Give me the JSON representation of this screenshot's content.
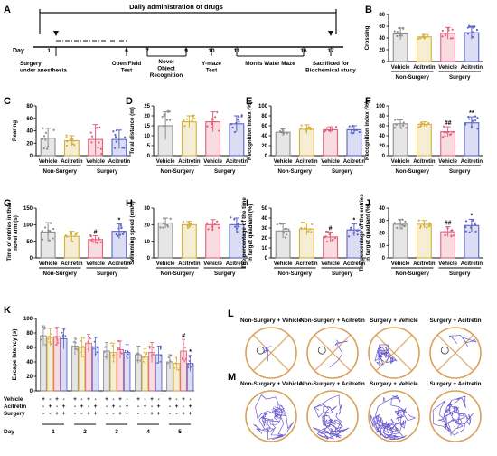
{
  "colors": {
    "vehicle_nonsurgery": "#8c8c8c",
    "acitretin_nonsurgery": "#d6b03a",
    "vehicle_surgery": "#e0607a",
    "acitretin_surgery": "#5a63c8",
    "sig": "#111111",
    "maze_ring": "#d9a05a",
    "track": "#6a5acd"
  },
  "timeline": {
    "panel": "A",
    "title": "Daily administration of drugs",
    "day_label": "Day",
    "days": [
      "1",
      "6",
      "7",
      "9",
      "10",
      "11",
      "16",
      "17"
    ],
    "events": [
      {
        "day": "1",
        "label": "Surgery\nunder anesthesia"
      },
      {
        "day": "6",
        "label": "Open Field\nTest"
      },
      {
        "day": "7-9",
        "label": "Novel\nObject\nRecognition"
      },
      {
        "day": "10",
        "label": "Y-maze\nTest"
      },
      {
        "day": "11-16",
        "label": "Morris Water Maze"
      },
      {
        "day": "17",
        "label": "Sacrificed for\nBiochemical study"
      }
    ]
  },
  "chart_data": [
    {
      "panel": "B",
      "type": "bar",
      "ylabel": "Crossing",
      "ylim": [
        0,
        80
      ],
      "yticks": [
        0,
        20,
        40,
        60,
        80
      ],
      "categories": [
        "Vehicle",
        "Acitretin",
        "Vehicle",
        "Acitretin"
      ],
      "groups": [
        "Non-Surgery",
        "Surgery"
      ],
      "values": [
        47,
        42,
        48,
        49
      ],
      "errors": [
        10,
        4,
        10,
        11
      ],
      "sig": [
        "",
        "",
        "",
        ""
      ]
    },
    {
      "panel": "C",
      "type": "bar",
      "ylabel": "Rearing",
      "ylim": [
        0,
        80
      ],
      "yticks": [
        0,
        20,
        40,
        60,
        80
      ],
      "categories": [
        "Vehicle",
        "Acitretin",
        "Vehicle",
        "Acitretin"
      ],
      "groups": [
        "Non-Surgery",
        "Surgery"
      ],
      "values": [
        28,
        24,
        26,
        26
      ],
      "errors": [
        16,
        8,
        24,
        15
      ],
      "sig": [
        "",
        "",
        "",
        ""
      ]
    },
    {
      "panel": "D",
      "type": "bar",
      "ylabel": "Total distance (m)",
      "ylim": [
        0,
        25
      ],
      "yticks": [
        0,
        5,
        10,
        15,
        20,
        25
      ],
      "categories": [
        "Vehicle",
        "Acitretin",
        "Vehicle",
        "Acitretin"
      ],
      "groups": [
        "Non-Surgery",
        "Surgery"
      ],
      "values": [
        15,
        17,
        17,
        16
      ],
      "errors": [
        7,
        3,
        5,
        4
      ],
      "sig": [
        "",
        "",
        "",
        ""
      ]
    },
    {
      "panel": "E",
      "type": "bar",
      "ylabel": "Recognition index (%)",
      "ylim": [
        0,
        100
      ],
      "yticks": [
        0,
        20,
        40,
        60,
        80,
        100
      ],
      "categories": [
        "Vehicle",
        "Acitretin",
        "Vehicle",
        "Acitretin"
      ],
      "groups": [
        "Non-Surgery",
        "Surgery"
      ],
      "values": [
        47,
        53,
        52,
        52
      ],
      "errors": [
        7,
        9,
        6,
        8
      ],
      "sig": [
        "",
        "",
        "",
        ""
      ]
    },
    {
      "panel": "F",
      "type": "bar",
      "ylabel": "Recognition index (%)",
      "ylim": [
        0,
        100
      ],
      "yticks": [
        0,
        20,
        40,
        60,
        80,
        100
      ],
      "categories": [
        "Vehicle",
        "Acitretin",
        "Vehicle",
        "Acitretin"
      ],
      "groups": [
        "Non-Surgery",
        "Surgery"
      ],
      "values": [
        64,
        63,
        48,
        66
      ],
      "errors": [
        8,
        5,
        10,
        12
      ],
      "sig": [
        "",
        "",
        "##",
        "**"
      ]
    },
    {
      "panel": "G",
      "type": "bar",
      "ylabel": "Time of entries in the\nnovel arm (s)",
      "ylim": [
        0,
        150
      ],
      "yticks": [
        0,
        50,
        100,
        150
      ],
      "categories": [
        "Vehicle",
        "Acitretin",
        "Vehicle",
        "Acitretin"
      ],
      "groups": [
        "Non-Surgery",
        "Surgery"
      ],
      "values": [
        78,
        65,
        55,
        80
      ],
      "errors": [
        28,
        15,
        12,
        22
      ],
      "sig": [
        "",
        "",
        "#",
        "*"
      ]
    },
    {
      "panel": "H",
      "type": "bar",
      "ylabel": "Swimming speed (cm/s)",
      "ylim": [
        0,
        30
      ],
      "yticks": [
        0,
        10,
        20,
        30
      ],
      "categories": [
        "Vehicle",
        "Acitretin",
        "Vehicle",
        "Acitretin"
      ],
      "groups": [
        "Non-Surgery",
        "Surgery"
      ],
      "values": [
        21,
        20,
        20,
        20
      ],
      "errors": [
        3,
        2,
        3,
        4
      ],
      "sig": [
        "",
        "",
        "",
        ""
      ]
    },
    {
      "panel": "I",
      "type": "bar",
      "ylabel": "The percentage of the time\nin target quadrant (%)",
      "ylim": [
        0,
        50
      ],
      "yticks": [
        0,
        10,
        20,
        30,
        40,
        50
      ],
      "categories": [
        "Vehicle",
        "Acitretin",
        "Vehicle",
        "Acitretin"
      ],
      "groups": [
        "Non-Surgery",
        "Surgery"
      ],
      "values": [
        27,
        29,
        21,
        28
      ],
      "errors": [
        7,
        6,
        5,
        6
      ],
      "sig": [
        "",
        "",
        "#",
        "*"
      ]
    },
    {
      "panel": "J",
      "type": "bar",
      "ylabel": "The percentage of the entries\nin target quadrant (%)",
      "ylim": [
        0,
        40
      ],
      "yticks": [
        0,
        10,
        20,
        30,
        40
      ],
      "categories": [
        "Vehicle",
        "Acitretin",
        "Vehicle",
        "Acitretin"
      ],
      "groups": [
        "Non-Surgery",
        "Surgery"
      ],
      "values": [
        27,
        27,
        21,
        26
      ],
      "errors": [
        4,
        3,
        4,
        5
      ],
      "sig": [
        "",
        "",
        "##",
        "*"
      ]
    },
    {
      "panel": "K",
      "type": "bar",
      "ylabel": "Escape latency (s)",
      "ylim": [
        0,
        100
      ],
      "yticks": [
        0,
        20,
        40,
        60,
        80,
        100
      ],
      "xlabel": "Day",
      "days": [
        "1",
        "2",
        "3",
        "4",
        "5"
      ],
      "row_labels": [
        "Vehicle",
        "Acitretin",
        "Surgery"
      ],
      "row_signs": [
        [
          "+",
          "-",
          "+",
          "-"
        ],
        [
          "-",
          "+",
          "-",
          "+"
        ],
        [
          "-",
          "-",
          "+",
          "+"
        ]
      ],
      "series": [
        {
          "values": [
            76,
            62,
            55,
            50,
            40
          ],
          "errors": [
            14,
            12,
            12,
            12,
            10
          ]
        },
        {
          "values": [
            74,
            60,
            53,
            47,
            38
          ],
          "errors": [
            12,
            14,
            13,
            11,
            10
          ]
        },
        {
          "values": [
            75,
            66,
            57,
            53,
            55
          ],
          "errors": [
            13,
            12,
            12,
            14,
            16
          ]
        },
        {
          "values": [
            72,
            61,
            53,
            50,
            38
          ],
          "errors": [
            14,
            13,
            11,
            12,
            11
          ]
        }
      ],
      "sig": [
        [
          "",
          "",
          "",
          ""
        ],
        [
          "",
          "",
          "",
          ""
        ],
        [
          "",
          "",
          "",
          ""
        ],
        [
          "",
          "",
          "",
          ""
        ],
        [
          "",
          "",
          "#",
          "*"
        ]
      ]
    }
  ],
  "tracks": {
    "row_L": {
      "panel": "L",
      "labels": [
        "Non-Surgery + Vehicle",
        "Non-Surgery + Acitretin",
        "Surgery + Vehicle",
        "Surgery + Acitretin"
      ]
    },
    "row_M": {
      "panel": "M",
      "labels": [
        "Non-Surgery + Vehicle",
        "Non-Surgery + Acitretin",
        "Surgery + Vehicle",
        "Surgery + Acitretin"
      ]
    }
  }
}
